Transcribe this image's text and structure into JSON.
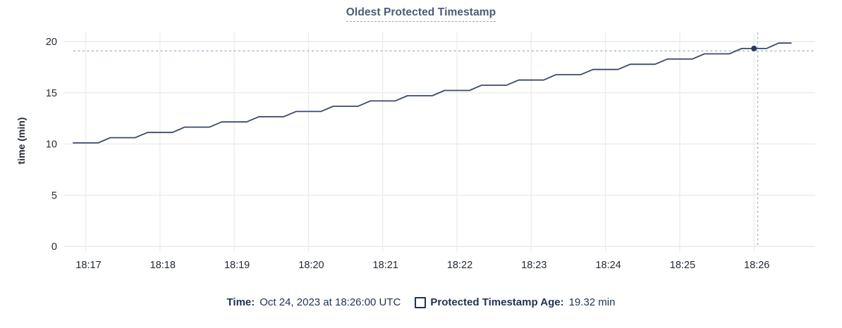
{
  "title": "Oldest Protected Timestamp",
  "colors": {
    "title": "#4a5b75",
    "title_underline": "#93a7bd",
    "line": "#3b4a67",
    "point": "#2b3955",
    "crosshair": "#a6bac9",
    "grid": "#ececec",
    "axis_text": "#242a35",
    "legend_text": "#1e3353"
  },
  "y_axis": {
    "label": "time (min)",
    "ticks": [
      0,
      5,
      10,
      15,
      20
    ],
    "range": [
      0,
      20
    ]
  },
  "x_axis": {
    "ticks": [
      "18:17",
      "18:18",
      "18:19",
      "18:20",
      "18:21",
      "18:22",
      "18:23",
      "18:24",
      "18:25",
      "18:26"
    ]
  },
  "legend": {
    "time_label": "Time:",
    "time_value": "Oct 24, 2023 at 18:26:00 UTC",
    "checkbox_icon": "unchecked-square",
    "series_label": "Protected Timestamp Age:",
    "series_value": "19.32 min"
  },
  "chart_data": {
    "type": "line",
    "title": "Oldest Protected Timestamp",
    "xlabel": "",
    "ylabel": "time (min)",
    "ylim": [
      0,
      20
    ],
    "x_tick_labels": [
      "18:17",
      "18:18",
      "18:19",
      "18:20",
      "18:21",
      "18:22",
      "18:23",
      "18:24",
      "18:25",
      "18:26"
    ],
    "grid": true,
    "legend_position": "bottom",
    "series": [
      {
        "name": "Protected Timestamp Age",
        "unit": "min",
        "points": [
          [
            "18:16:50",
            10.1
          ],
          [
            "18:17:00",
            10.1
          ],
          [
            "18:17:10",
            10.1
          ],
          [
            "18:17:20",
            10.61
          ],
          [
            "18:17:30",
            10.61
          ],
          [
            "18:17:40",
            10.61
          ],
          [
            "18:17:50",
            11.12
          ],
          [
            "18:18:00",
            11.12
          ],
          [
            "18:18:10",
            11.12
          ],
          [
            "18:18:20",
            11.64
          ],
          [
            "18:18:30",
            11.64
          ],
          [
            "18:18:40",
            11.64
          ],
          [
            "18:18:50",
            12.15
          ],
          [
            "18:19:00",
            12.15
          ],
          [
            "18:19:10",
            12.15
          ],
          [
            "18:19:20",
            12.66
          ],
          [
            "18:19:30",
            12.66
          ],
          [
            "18:19:40",
            12.66
          ],
          [
            "18:19:50",
            13.17
          ],
          [
            "18:20:00",
            13.17
          ],
          [
            "18:20:10",
            13.17
          ],
          [
            "18:20:20",
            13.68
          ],
          [
            "18:20:30",
            13.68
          ],
          [
            "18:20:40",
            13.68
          ],
          [
            "18:20:50",
            14.2
          ],
          [
            "18:21:00",
            14.2
          ],
          [
            "18:21:10",
            14.2
          ],
          [
            "18:21:20",
            14.71
          ],
          [
            "18:21:30",
            14.71
          ],
          [
            "18:21:40",
            14.71
          ],
          [
            "18:21:50",
            15.22
          ],
          [
            "18:22:00",
            15.22
          ],
          [
            "18:22:10",
            15.22
          ],
          [
            "18:22:20",
            15.73
          ],
          [
            "18:22:30",
            15.73
          ],
          [
            "18:22:40",
            15.73
          ],
          [
            "18:22:50",
            16.24
          ],
          [
            "18:23:00",
            16.24
          ],
          [
            "18:23:10",
            16.24
          ],
          [
            "18:23:20",
            16.76
          ],
          [
            "18:23:30",
            16.76
          ],
          [
            "18:23:40",
            16.76
          ],
          [
            "18:23:50",
            17.27
          ],
          [
            "18:24:00",
            17.27
          ],
          [
            "18:24:10",
            17.27
          ],
          [
            "18:24:20",
            17.78
          ],
          [
            "18:24:30",
            17.78
          ],
          [
            "18:24:40",
            17.78
          ],
          [
            "18:24:50",
            18.29
          ],
          [
            "18:25:00",
            18.29
          ],
          [
            "18:25:10",
            18.29
          ],
          [
            "18:25:20",
            18.8
          ],
          [
            "18:25:30",
            18.8
          ],
          [
            "18:25:40",
            18.8
          ],
          [
            "18:25:50",
            19.32
          ],
          [
            "18:26:00",
            19.32
          ],
          [
            "18:26:10",
            19.32
          ],
          [
            "18:26:20",
            19.85
          ],
          [
            "18:26:30",
            19.85
          ]
        ]
      }
    ],
    "highlight_point": {
      "time": "18:26:00",
      "value": 19.32
    },
    "crosshair": {
      "x_time": "18:26:03",
      "y_value": 19.08
    }
  }
}
